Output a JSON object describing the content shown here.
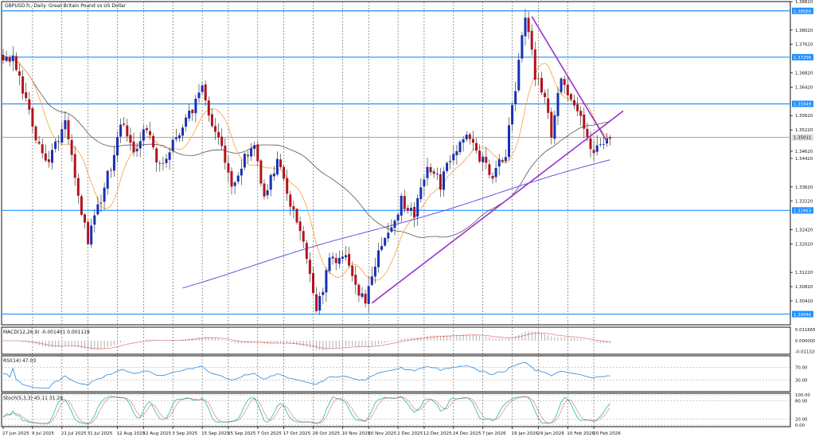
{
  "colors": {
    "bull": "#1530b8",
    "bear": "#b3121c",
    "hline": "#1e90ff",
    "ma_fast": "#f5a23c",
    "ma_mid": "#555555",
    "ma_slow": "#5a3fd6",
    "trendline": "#9932cc",
    "grid": "#555555",
    "macd": "#cc3333",
    "rsi": "#2f88d8",
    "stoch_main": "#2ab7a9",
    "stoch_signal": "#cc3333"
  },
  "chart_data": [
    {
      "type": "candlestick",
      "title": "GBPUSD.fc, Daily:  Great Britain Pound vs US Dollar",
      "ylim": [
        1.2975,
        1.3882
      ],
      "y_ticks": [
        "1.38820",
        "1.38020",
        "1.37620",
        "1.36820",
        "1.36420",
        "1.35620",
        "1.35220",
        "1.34620",
        "1.34420",
        "1.33620",
        "1.33220",
        "1.32420",
        "1.32020",
        "1.31220",
        "1.30820",
        "1.30420"
      ],
      "y_tick_values": [
        1.3882,
        1.3802,
        1.3762,
        1.3682,
        1.3642,
        1.3562,
        1.3522,
        1.3462,
        1.3442,
        1.3362,
        1.3322,
        1.3242,
        1.3202,
        1.3122,
        1.3082,
        1.3042
      ],
      "x_labels": [
        "27 Jun 2025",
        "9 Jul 2025",
        "21 Jul 2025",
        "31 Jul 2025",
        "12 Aug 2025",
        "22 Aug 2025",
        "3 Sep 2025",
        "15 Sep 2025",
        "25 Sep 2025",
        "7 Oct 2025",
        "17 Oct 2025",
        "29 Oct 2025",
        "10 Nov 2025",
        "20 Nov 2025",
        "2 Dec 2025",
        "12 Dec 2025",
        "24 Dec 2025",
        "7 Jan 2026",
        "19 Jan 2026",
        "29 Jan 2026",
        "10 Feb 2026",
        "20 Feb 2026"
      ],
      "x_label_index": [
        0,
        9,
        18,
        26,
        35,
        43,
        52,
        61,
        69,
        78,
        86,
        95,
        104,
        112,
        121,
        129,
        138,
        147,
        156,
        164,
        173,
        181
      ],
      "levels": [
        {
          "value": 1.3856,
          "label": "1.38560"
        },
        {
          "value": 1.3726,
          "label": "1.37256"
        },
        {
          "value": 1.3595,
          "label": "1.35949"
        },
        {
          "value": 1.3296,
          "label": "1.32963"
        },
        {
          "value": 1.3005,
          "label": "1.30046"
        }
      ],
      "current_price": {
        "value": 1.3501,
        "label": "1.35011"
      },
      "anchors": [
        {
          "i": 0,
          "p": 1.3705
        },
        {
          "i": 3,
          "p": 1.3725
        },
        {
          "i": 7,
          "p": 1.361
        },
        {
          "i": 11,
          "p": 1.347
        },
        {
          "i": 14,
          "p": 1.3435
        },
        {
          "i": 19,
          "p": 1.355
        },
        {
          "i": 23,
          "p": 1.333
        },
        {
          "i": 26,
          "p": 1.3215
        },
        {
          "i": 29,
          "p": 1.3305
        },
        {
          "i": 33,
          "p": 1.342
        },
        {
          "i": 36,
          "p": 1.354
        },
        {
          "i": 40,
          "p": 1.347
        },
        {
          "i": 44,
          "p": 1.352
        },
        {
          "i": 48,
          "p": 1.342
        },
        {
          "i": 52,
          "p": 1.348
        },
        {
          "i": 56,
          "p": 1.354
        },
        {
          "i": 61,
          "p": 1.364
        },
        {
          "i": 64,
          "p": 1.353
        },
        {
          "i": 67,
          "p": 1.347
        },
        {
          "i": 70,
          "p": 1.335
        },
        {
          "i": 74,
          "p": 1.345
        },
        {
          "i": 77,
          "p": 1.347
        },
        {
          "i": 80,
          "p": 1.333
        },
        {
          "i": 84,
          "p": 1.344
        },
        {
          "i": 88,
          "p": 1.332
        },
        {
          "i": 92,
          "p": 1.32
        },
        {
          "i": 96,
          "p": 1.301
        },
        {
          "i": 100,
          "p": 1.315
        },
        {
          "i": 104,
          "p": 1.318
        },
        {
          "i": 108,
          "p": 1.309
        },
        {
          "i": 111,
          "p": 1.3035
        },
        {
          "i": 114,
          "p": 1.315
        },
        {
          "i": 118,
          "p": 1.323
        },
        {
          "i": 122,
          "p": 1.332
        },
        {
          "i": 126,
          "p": 1.329
        },
        {
          "i": 130,
          "p": 1.342
        },
        {
          "i": 134,
          "p": 1.337
        },
        {
          "i": 138,
          "p": 1.346
        },
        {
          "i": 142,
          "p": 1.352
        },
        {
          "i": 146,
          "p": 1.344
        },
        {
          "i": 150,
          "p": 1.34
        },
        {
          "i": 154,
          "p": 1.346
        },
        {
          "i": 157,
          "p": 1.364
        },
        {
          "i": 160,
          "p": 1.385
        },
        {
          "i": 163,
          "p": 1.368
        },
        {
          "i": 166,
          "p": 1.361
        },
        {
          "i": 168,
          "p": 1.351
        },
        {
          "i": 171,
          "p": 1.366
        },
        {
          "i": 174,
          "p": 1.362
        },
        {
          "i": 177,
          "p": 1.357
        },
        {
          "i": 180,
          "p": 1.347
        },
        {
          "i": 183,
          "p": 1.348
        },
        {
          "i": 185,
          "p": 1.35
        }
      ],
      "trendlines": [
        {
          "i1": 113,
          "p1": 1.3036,
          "i2": 190,
          "p2": 1.3575
        },
        {
          "i1": 162,
          "p1": 1.384,
          "i2": 185,
          "p2": 1.349
        }
      ],
      "moving_averages": [
        {
          "period": 10,
          "key": "ma_fast"
        },
        {
          "period": 50,
          "key": "ma_mid"
        },
        {
          "period": 200,
          "key": "ma_slow"
        }
      ]
    },
    {
      "type": "line",
      "title": "MACD(12,26,9) -0.001401 0.001119",
      "y_ticks": [
        "0.011665",
        "0.000000",
        "-0.011326"
      ],
      "y_tick_values": [
        0.011665,
        0.0,
        -0.011326
      ],
      "ylim": [
        -0.0125,
        0.0125
      ]
    },
    {
      "type": "line",
      "title": "RSI(14) 47.03",
      "y_ticks": [
        "70.00",
        "30.00"
      ],
      "y_tick_values": [
        70,
        30
      ],
      "ylim": [
        0,
        100
      ]
    },
    {
      "type": "line",
      "title": "Stoch(5,3,3) 45.11 31.28",
      "y_ticks": [
        "100.00",
        "80.00",
        "20.00",
        "0.00"
      ],
      "y_tick_values": [
        100,
        80,
        20,
        0
      ],
      "ylim": [
        0,
        100
      ]
    }
  ]
}
